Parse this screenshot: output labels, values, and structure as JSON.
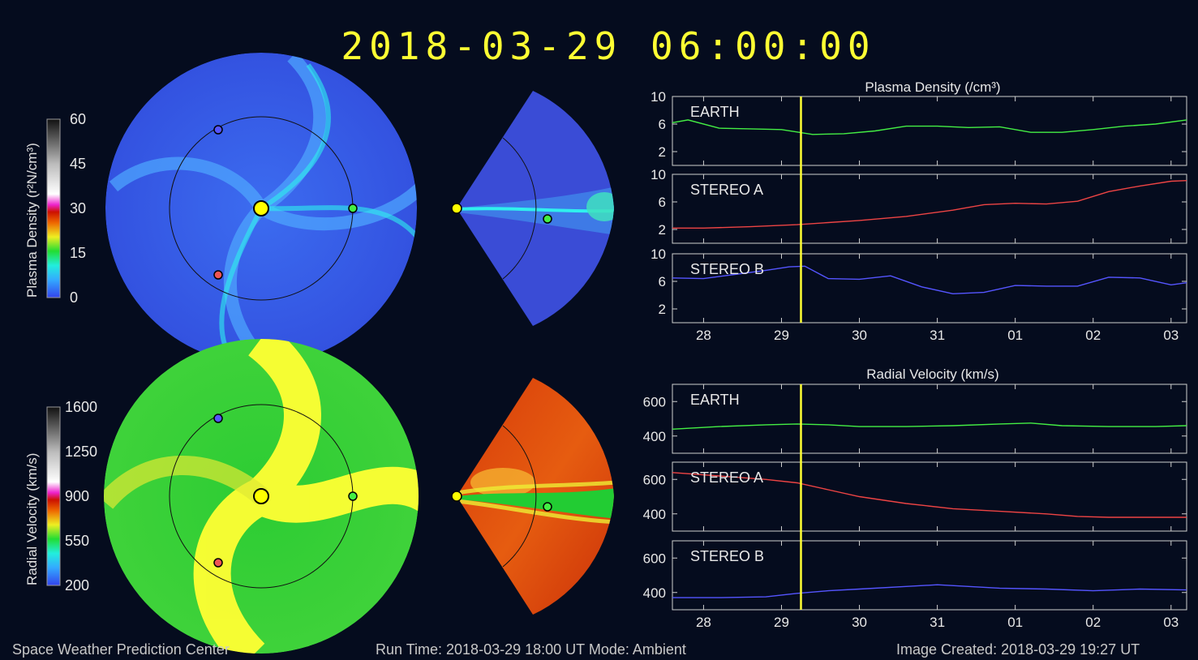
{
  "datetime": "2018-03-29  06:00:00",
  "colorbars": {
    "density": {
      "title": "Plasma Density (r²N/cm³)",
      "ticks": [
        "60",
        "45",
        "30",
        "15",
        "0"
      ]
    },
    "velocity": {
      "title": "Radial Velocity (km/s)",
      "ticks": [
        "1600",
        "1250",
        "900",
        "550",
        "200"
      ]
    }
  },
  "panels": {
    "density_title": "Plasma Density (/cm³)",
    "velocity_title": "Radial Velocity (km/s)"
  },
  "footer": {
    "left": "Space Weather Prediction Center",
    "middle": "Run Time: 2018-03-29 18:00 UT   Mode: Ambient",
    "right": "Image Created: 2018-03-29 19:27 UT"
  },
  "colors": {
    "background": "#050c1e",
    "earth": "#44ee44",
    "stereo_a": "#ee4444",
    "stereo_b": "#5555ff",
    "current_time_marker": "#ffff33",
    "sun": "#ffff00"
  },
  "chart_data": [
    {
      "type": "line",
      "title": "Plasma Density (/cm³)",
      "x_tick_labels": [
        "28",
        "29",
        "30",
        "31",
        "01",
        "02",
        "03"
      ],
      "current_time": "2018-03-29 06:00",
      "panels": [
        {
          "label": "EARTH",
          "color": "#44ee44",
          "ylim": [
            0,
            10
          ],
          "yticks": [
            "10",
            "6",
            "2"
          ],
          "x": [
            27.6,
            27.8,
            28.2,
            28.6,
            29.0,
            29.4,
            29.8,
            30.2,
            30.6,
            31.0,
            31.4,
            31.8,
            32.2,
            32.6,
            33.0,
            33.4,
            33.8,
            34.2
          ],
          "values": [
            6.2,
            6.6,
            5.4,
            5.3,
            5.2,
            4.5,
            4.6,
            5.0,
            5.7,
            5.7,
            5.5,
            5.6,
            4.8,
            4.8,
            5.2,
            5.7,
            6.0,
            6.6
          ]
        },
        {
          "label": "STEREO A",
          "color": "#ee4444",
          "ylim": [
            0,
            10
          ],
          "yticks": [
            "10",
            "6",
            "2"
          ],
          "x": [
            27.6,
            28.0,
            28.6,
            29.2,
            29.6,
            30.0,
            30.6,
            31.2,
            31.6,
            32.0,
            32.4,
            32.8,
            33.2,
            33.6,
            34.0,
            34.2
          ],
          "values": [
            2.2,
            2.2,
            2.4,
            2.7,
            3.0,
            3.3,
            3.9,
            4.8,
            5.6,
            5.8,
            5.7,
            6.1,
            7.5,
            8.3,
            9.0,
            9.1
          ]
        },
        {
          "label": "STEREO B",
          "color": "#5555ff",
          "ylim": [
            0,
            10
          ],
          "yticks": [
            "10",
            "6",
            "2"
          ],
          "x": [
            27.6,
            28.0,
            28.4,
            28.8,
            29.1,
            29.3,
            29.6,
            30.0,
            30.4,
            30.8,
            31.2,
            31.6,
            32.0,
            32.4,
            32.8,
            33.2,
            33.6,
            34.0,
            34.2
          ],
          "values": [
            6.5,
            6.4,
            7.0,
            7.6,
            8.1,
            8.2,
            6.4,
            6.3,
            6.8,
            5.2,
            4.2,
            4.4,
            5.4,
            5.3,
            5.3,
            6.6,
            6.5,
            5.5,
            5.8
          ]
        }
      ]
    },
    {
      "type": "line",
      "title": "Radial Velocity (km/s)",
      "x_tick_labels": [
        "28",
        "29",
        "30",
        "31",
        "01",
        "02",
        "03"
      ],
      "current_time": "2018-03-29 06:00",
      "panels": [
        {
          "label": "EARTH",
          "color": "#44ee44",
          "ylim": [
            300,
            700
          ],
          "yticks": [
            "600",
            "400"
          ],
          "x": [
            27.6,
            28.2,
            28.8,
            29.2,
            29.6,
            30.0,
            30.6,
            31.2,
            31.8,
            32.2,
            32.6,
            33.2,
            33.8,
            34.2
          ],
          "values": [
            440,
            455,
            465,
            470,
            465,
            455,
            455,
            460,
            470,
            475,
            460,
            455,
            455,
            460
          ]
        },
        {
          "label": "STEREO A",
          "color": "#ee4444",
          "ylim": [
            300,
            700
          ],
          "yticks": [
            "600",
            "400"
          ],
          "x": [
            27.6,
            28.2,
            28.8,
            29.2,
            29.6,
            30.0,
            30.6,
            31.2,
            31.8,
            32.4,
            32.8,
            33.2,
            33.8,
            34.2
          ],
          "values": [
            640,
            620,
            600,
            580,
            540,
            500,
            460,
            430,
            415,
            400,
            385,
            380,
            380,
            380
          ]
        },
        {
          "label": "STEREO B",
          "color": "#5555ff",
          "ylim": [
            300,
            700
          ],
          "yticks": [
            "600",
            "400"
          ],
          "x": [
            27.6,
            28.2,
            28.8,
            29.2,
            29.6,
            30.0,
            30.6,
            31.0,
            31.4,
            31.8,
            32.4,
            33.0,
            33.6,
            34.2
          ],
          "values": [
            370,
            370,
            375,
            395,
            410,
            420,
            435,
            445,
            435,
            425,
            420,
            410,
            420,
            415
          ]
        }
      ]
    }
  ]
}
